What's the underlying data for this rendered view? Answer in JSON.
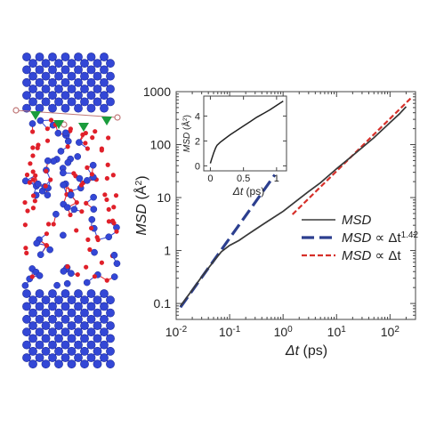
{
  "chart_data": [
    {
      "type": "line",
      "scale": {
        "x": "log",
        "y": "log"
      },
      "xlim": [
        0.01,
        300
      ],
      "ylim": [
        0.05,
        1000
      ],
      "xlabel": {
        "base": "Δt",
        "unit": " (ps)"
      },
      "ylabel": {
        "base": "MSD",
        "unit_open": " (Å",
        "unit_exp": "2",
        "unit_close": ")"
      },
      "x_ticks": [
        {
          "value": 0.01,
          "base": "10",
          "exp": "-2"
        },
        {
          "value": 0.1,
          "base": "10",
          "exp": "-1"
        },
        {
          "value": 1,
          "base": "10",
          "exp": "0"
        },
        {
          "value": 10,
          "base": "10",
          "exp": "1"
        },
        {
          "value": 100,
          "base": "10",
          "exp": "2"
        }
      ],
      "y_ticks": [
        {
          "value": 0.1,
          "label": "0.1"
        },
        {
          "value": 1,
          "label": "1"
        },
        {
          "value": 10,
          "label": "10"
        },
        {
          "value": 100,
          "label": "100"
        },
        {
          "value": 1000,
          "label": "1000"
        }
      ],
      "grid": false,
      "legend_position": "bottom-right",
      "series": [
        {
          "name": "MSD",
          "label_main": "MSD",
          "label_tail": "",
          "label_exp": "",
          "color": "#3a3a3a",
          "dash": "solid",
          "x": [
            0.012,
            0.02,
            0.03,
            0.05,
            0.07,
            0.1,
            0.15,
            0.2,
            0.3,
            0.5,
            1,
            2,
            3,
            5,
            10,
            20,
            50,
            100,
            150,
            200
          ],
          "y": [
            0.09,
            0.18,
            0.32,
            0.62,
            0.95,
            1.25,
            1.55,
            1.9,
            2.5,
            3.5,
            5.5,
            9.5,
            13,
            19,
            35,
            62,
            135,
            260,
            380,
            520
          ]
        },
        {
          "name": "MSD ∝ Δt 1.42",
          "label_main": "MSD",
          "label_tail": " ∝ Δt",
          "label_exp": "1.42",
          "color": "#2c3f8f",
          "dash": "long",
          "x": [
            0.012,
            0.7
          ],
          "y": [
            0.085,
            27
          ]
        },
        {
          "name": "MSD ∝ Δt",
          "label_main": "MSD",
          "label_tail": " ∝ Δt",
          "label_exp": "",
          "color": "#d6302a",
          "dash": "short",
          "x": [
            1.5,
            260
          ],
          "y": [
            4.8,
            800
          ]
        }
      ]
    },
    {
      "type": "line",
      "scale": {
        "x": "linear",
        "y": "linear"
      },
      "xlim": [
        -0.1,
        1.15
      ],
      "ylim": [
        -0.4,
        5.6
      ],
      "xlabel": {
        "base": "Δt",
        "unit": " (ps)"
      },
      "ylabel": {
        "base": "MSD",
        "unit_open": " (Å",
        "unit_exp": "2",
        "unit_close": ")"
      },
      "x_ticks": [
        {
          "value": 0,
          "label": "0"
        },
        {
          "value": 0.5,
          "label": "0.5"
        },
        {
          "value": 1,
          "label": "1"
        }
      ],
      "y_ticks": [
        {
          "value": 0,
          "label": "0"
        },
        {
          "value": 2,
          "label": "2"
        },
        {
          "value": 4,
          "label": "4"
        }
      ],
      "grid": false,
      "series": [
        {
          "name": "MSD",
          "color": "#222222",
          "x": [
            0,
            0.02,
            0.05,
            0.08,
            0.1,
            0.15,
            0.2,
            0.3,
            0.4,
            0.5,
            0.6,
            0.7,
            0.8,
            0.9,
            1.0,
            1.1
          ],
          "y": [
            0.2,
            0.55,
            1.05,
            1.45,
            1.65,
            1.9,
            2.1,
            2.5,
            2.85,
            3.2,
            3.55,
            3.9,
            4.2,
            4.5,
            4.85,
            5.2
          ]
        }
      ]
    }
  ],
  "structure_image": {
    "colors": {
      "host_atom": "#3347d6",
      "host_atom_dark": "#1f2c9a",
      "bond": "#3347d6",
      "guest_atom": "#e0202a",
      "marker": "#1a9c3c",
      "probe": "#c07878"
    }
  }
}
